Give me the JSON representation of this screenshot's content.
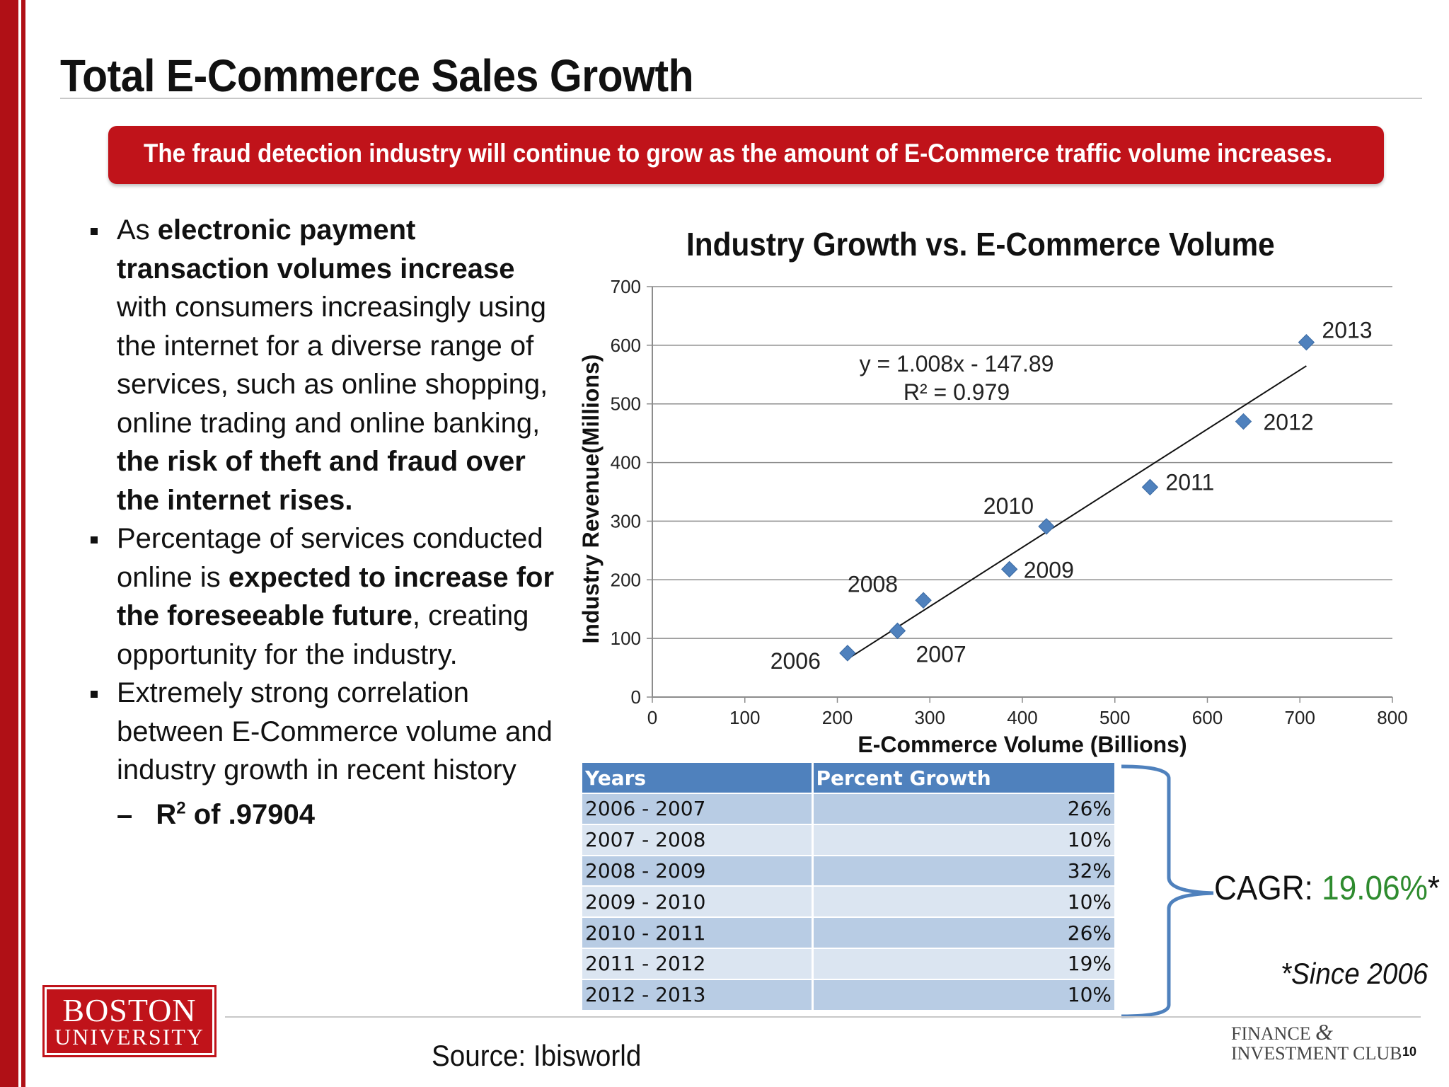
{
  "slide": {
    "title": "Total E-Commerce Sales Growth",
    "banner": "The fraud detection industry will continue to grow as the amount of E-Commerce traffic volume increases.",
    "bullets": [
      [
        {
          "t": "As ",
          "b": false
        },
        {
          "t": "electronic payment transaction volumes increase",
          "b": true
        },
        {
          "t": " with consumers increasingly using the internet for a diverse range of services, such as online shopping, online trading and online banking, ",
          "b": false
        },
        {
          "t": "the risk of theft and fraud over the internet rises.",
          "b": true
        }
      ],
      [
        {
          "t": "Percentage of services conducted online is ",
          "b": false
        },
        {
          "t": "expected to increase for the foreseeable future",
          "b": true
        },
        {
          "t": ", creating opportunity for the industry.",
          "b": false
        }
      ],
      [
        {
          "t": "Extremely strong correlation between E-Commerce volume and industry growth in recent history",
          "b": false
        }
      ]
    ],
    "sub_bullet": {
      "dash": "–",
      "prefix": "R",
      "sup": "2",
      "suffix": " of .97904"
    },
    "cagr_label": "CAGR: ",
    "cagr_value": "19.06%",
    "cagr_star": "*",
    "since_note": "*Since 2006",
    "source": "Source: Ibisworld",
    "logo_left_line1": "BOSTON",
    "logo_left_line2": "UNIVERSITY",
    "logo_right_line1": "FINANCE",
    "logo_right_amp": "&",
    "logo_right_line2": "INVESTMENT CLUB",
    "page_number": "10"
  },
  "table": {
    "headers": [
      "Years",
      "Percent Growth"
    ],
    "rows": [
      [
        "2006 - 2007",
        "26%"
      ],
      [
        "2007 - 2008",
        "10%"
      ],
      [
        "2008 - 2009",
        "32%"
      ],
      [
        "2009 - 2010",
        "10%"
      ],
      [
        "2010 - 2011",
        "26%"
      ],
      [
        "2011 - 2012",
        "19%"
      ],
      [
        "2012 - 2013",
        "10%"
      ]
    ]
  },
  "chart_data": {
    "type": "scatter",
    "title": "Industry Growth vs. E-Commerce Volume",
    "xlabel": "E-Commerce Volume (Billions)",
    "ylabel": "Industry Revenue(Millions)",
    "xlim": [
      0,
      800
    ],
    "ylim": [
      0,
      700
    ],
    "xticks": [
      0,
      100,
      200,
      300,
      400,
      500,
      600,
      700,
      800
    ],
    "yticks": [
      0,
      100,
      200,
      300,
      400,
      500,
      600,
      700
    ],
    "grid": "horizontal",
    "marker_color": "#4f81bd",
    "points": [
      {
        "label": "2006",
        "x": 211,
        "y": 75
      },
      {
        "label": "2007",
        "x": 265,
        "y": 113
      },
      {
        "label": "2008",
        "x": 293,
        "y": 165
      },
      {
        "label": "2009",
        "x": 386,
        "y": 218
      },
      {
        "label": "2010",
        "x": 426,
        "y": 291
      },
      {
        "label": "2011",
        "x": 538,
        "y": 358
      },
      {
        "label": "2012",
        "x": 639,
        "y": 470
      },
      {
        "label": "2013",
        "x": 707,
        "y": 605
      }
    ],
    "trendline": {
      "slope": 1.008,
      "intercept": -147.89,
      "x_from": 211,
      "x_to": 707,
      "equation": "y = 1.008x - 147.89",
      "r2": "R² = 0.979"
    }
  }
}
